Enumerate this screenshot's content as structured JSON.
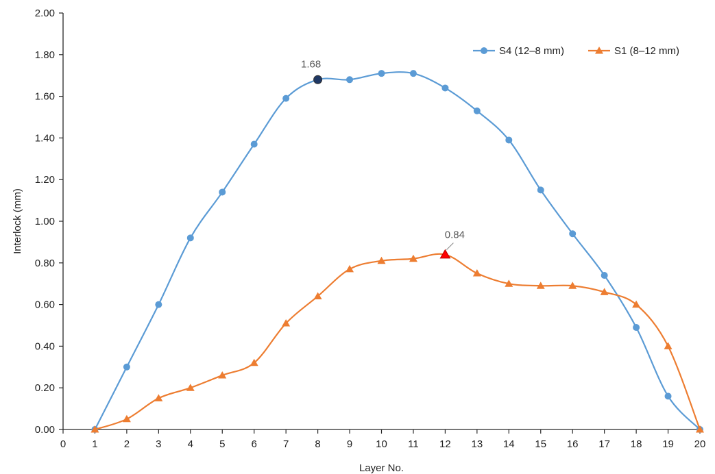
{
  "chart_data": {
    "type": "line",
    "title": "",
    "xlabel": "Layer No.",
    "ylabel": "Interlock (mm)",
    "xlim": [
      0,
      20
    ],
    "ylim": [
      0,
      2.0
    ],
    "x_ticks": [
      "0",
      "1",
      "2",
      "3",
      "4",
      "5",
      "6",
      "7",
      "8",
      "9",
      "10",
      "11",
      "12",
      "13",
      "14",
      "15",
      "16",
      "17",
      "18",
      "19",
      "20"
    ],
    "y_ticks": [
      "0.00",
      "0.20",
      "0.40",
      "0.60",
      "0.80",
      "1.00",
      "1.20",
      "1.40",
      "1.60",
      "1.80",
      "2.00"
    ],
    "grid": false,
    "legend_position": "top-right",
    "series": [
      {
        "name": "S4 (12–8 mm)",
        "marker": "circle",
        "color": "#5b9bd5",
        "x": [
          1,
          2,
          3,
          4,
          5,
          6,
          7,
          8,
          9,
          10,
          11,
          12,
          13,
          14,
          15,
          16,
          17,
          18,
          19,
          20
        ],
        "y": [
          0.0,
          0.3,
          0.6,
          0.92,
          1.14,
          1.37,
          1.59,
          1.68,
          1.68,
          1.71,
          1.71,
          1.64,
          1.53,
          1.39,
          1.15,
          0.94,
          0.74,
          0.49,
          0.16,
          0.0
        ],
        "highlight": {
          "x": 8,
          "y": 1.68,
          "label": "1.68",
          "color": "#1f3864"
        }
      },
      {
        "name": "S1 (8–12 mm)",
        "marker": "triangle",
        "color": "#ed7d31",
        "x": [
          1,
          2,
          3,
          4,
          5,
          6,
          7,
          8,
          9,
          10,
          11,
          12,
          13,
          14,
          15,
          16,
          17,
          18,
          19,
          20
        ],
        "y": [
          0.0,
          0.05,
          0.15,
          0.2,
          0.26,
          0.32,
          0.51,
          0.64,
          0.77,
          0.81,
          0.82,
          0.84,
          0.75,
          0.7,
          0.69,
          0.69,
          0.66,
          0.6,
          0.4,
          0.0
        ],
        "highlight": {
          "x": 12,
          "y": 0.84,
          "label": "0.84",
          "color": "#ff0000"
        }
      }
    ]
  }
}
